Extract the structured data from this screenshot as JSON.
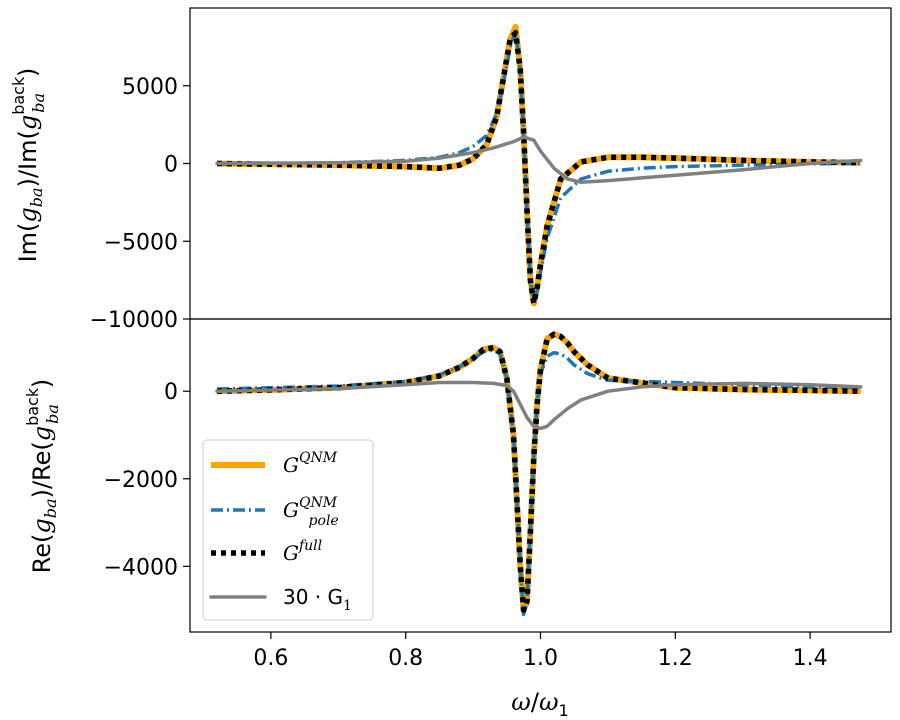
{
  "chart_data": [
    {
      "type": "line",
      "panel": "top",
      "ylabel": "Im(g_ba)/Im(g_ba^back)",
      "ylim": [
        -10000,
        10000
      ],
      "yticks": [
        5000,
        0,
        -5000,
        -10000
      ],
      "ytick_labels": [
        "5000",
        "0",
        "−5000",
        "−10000"
      ],
      "series": [
        {
          "name": "G^QNM",
          "color": "#ffa500",
          "x": [
            0.52,
            0.6,
            0.7,
            0.8,
            0.85,
            0.88,
            0.9,
            0.92,
            0.935,
            0.945,
            0.955,
            0.963,
            0.97,
            0.975,
            0.98,
            0.985,
            0.99,
            0.995,
            1.0,
            1.01,
            1.03,
            1.06,
            1.1,
            1.15,
            1.2,
            1.3,
            1.4,
            1.475
          ],
          "y": [
            0,
            -50,
            -100,
            -200,
            -300,
            -100,
            300,
            1200,
            3000,
            5500,
            8000,
            8800,
            6000,
            2000,
            -3000,
            -7500,
            -9000,
            -8000,
            -6500,
            -4000,
            -1000,
            100,
            400,
            400,
            350,
            200,
            100,
            50
          ]
        },
        {
          "name": "G^QNM_pole",
          "color": "#1f77b4",
          "x": [
            0.52,
            0.6,
            0.7,
            0.8,
            0.85,
            0.88,
            0.9,
            0.92,
            0.935,
            0.945,
            0.955,
            0.963,
            0.97,
            0.975,
            0.98,
            0.985,
            0.99,
            0.995,
            1.0,
            1.01,
            1.03,
            1.06,
            1.1,
            1.15,
            1.2,
            1.3,
            1.4,
            1.475
          ],
          "y": [
            -50,
            0,
            50,
            200,
            400,
            700,
            1100,
            1800,
            3200,
            5200,
            7500,
            8500,
            6000,
            2000,
            -3000,
            -7500,
            -9000,
            -8200,
            -7000,
            -4800,
            -2200,
            -1000,
            -500,
            -300,
            -200,
            -100,
            -20,
            0
          ]
        },
        {
          "name": "G^full",
          "color": "#000000",
          "x": [
            0.52,
            0.6,
            0.7,
            0.8,
            0.85,
            0.88,
            0.9,
            0.92,
            0.935,
            0.945,
            0.955,
            0.963,
            0.97,
            0.975,
            0.98,
            0.985,
            0.99,
            0.995,
            1.0,
            1.01,
            1.03,
            1.06,
            1.1,
            1.15,
            1.2,
            1.3,
            1.4,
            1.475
          ],
          "y": [
            0,
            -50,
            -100,
            -200,
            -300,
            -100,
            300,
            1200,
            3000,
            5500,
            8000,
            8400,
            6000,
            2000,
            -3000,
            -7500,
            -9000,
            -8000,
            -6500,
            -4000,
            -1000,
            100,
            400,
            400,
            350,
            200,
            100,
            50
          ]
        },
        {
          "name": "30·G_1",
          "color": "#808080",
          "x": [
            0.52,
            0.7,
            0.8,
            0.85,
            0.9,
            0.93,
            0.96,
            0.975,
            0.99,
            1.0,
            1.02,
            1.04,
            1.06,
            1.1,
            1.2,
            1.3,
            1.4,
            1.475
          ],
          "y": [
            0,
            50,
            150,
            350,
            700,
            1000,
            1400,
            1700,
            1500,
            800,
            -300,
            -1000,
            -1200,
            -1100,
            -750,
            -400,
            0,
            200
          ]
        }
      ]
    },
    {
      "type": "line",
      "panel": "bottom",
      "xlabel": "ω/ω_1",
      "ylabel": "Re(g_ba)/Re(g_ba^back)",
      "xlim": [
        0.48,
        1.52
      ],
      "ylim": [
        -5500,
        1650
      ],
      "xticks": [
        0.6,
        0.8,
        1.0,
        1.2,
        1.4
      ],
      "xtick_labels": [
        "0.6",
        "0.8",
        "1.0",
        "1.2",
        "1.4"
      ],
      "yticks": [
        0,
        -2000,
        -4000
      ],
      "ytick_labels": [
        "0",
        "−2000",
        "−4000"
      ],
      "legend": {
        "position": "lower-left",
        "entries": [
          {
            "series": 0,
            "base": "G",
            "sup": "QNM",
            "sub": ""
          },
          {
            "series": 1,
            "base": "G",
            "sup": "QNM",
            "sub": "pole"
          },
          {
            "series": 2,
            "base": "G",
            "sup": "full",
            "sub": ""
          },
          {
            "series": 3,
            "base": "30 · G",
            "sup": "",
            "sub": "1"
          }
        ]
      },
      "series": [
        {
          "name": "G^QNM",
          "color": "#ffa500",
          "x": [
            0.52,
            0.6,
            0.7,
            0.8,
            0.85,
            0.88,
            0.9,
            0.915,
            0.93,
            0.94,
            0.95,
            0.96,
            0.965,
            0.97,
            0.975,
            0.98,
            0.985,
            0.99,
            0.995,
            1.0,
            1.01,
            1.02,
            1.03,
            1.04,
            1.05,
            1.07,
            1.1,
            1.2,
            1.3,
            1.4,
            1.475
          ],
          "y": [
            0,
            30,
            80,
            200,
            350,
            550,
            750,
            950,
            1000,
            900,
            300,
            -1000,
            -2500,
            -4000,
            -5000,
            -4800,
            -3200,
            -1500,
            -300,
            500,
            1200,
            1300,
            1250,
            1100,
            900,
            600,
            300,
            80,
            40,
            20,
            0
          ]
        },
        {
          "name": "G^QNM_pole",
          "color": "#1f77b4",
          "x": [
            0.52,
            0.6,
            0.7,
            0.8,
            0.85,
            0.88,
            0.9,
            0.915,
            0.93,
            0.94,
            0.95,
            0.96,
            0.965,
            0.97,
            0.975,
            0.98,
            0.985,
            0.99,
            0.995,
            1.0,
            1.01,
            1.02,
            1.03,
            1.04,
            1.05,
            1.07,
            1.1,
            1.2,
            1.3,
            1.4,
            1.475
          ],
          "y": [
            50,
            80,
            120,
            220,
            370,
            560,
            740,
            900,
            940,
            850,
            300,
            -1000,
            -2500,
            -4000,
            -5100,
            -4800,
            -3200,
            -1500,
            -300,
            400,
            800,
            880,
            850,
            750,
            600,
            400,
            250,
            200,
            150,
            100,
            80
          ]
        },
        {
          "name": "G^full",
          "color": "#000000",
          "x": [
            0.52,
            0.6,
            0.7,
            0.8,
            0.85,
            0.88,
            0.9,
            0.915,
            0.93,
            0.94,
            0.95,
            0.96,
            0.965,
            0.97,
            0.975,
            0.98,
            0.985,
            0.99,
            0.995,
            1.0,
            1.01,
            1.02,
            1.03,
            1.04,
            1.05,
            1.07,
            1.1,
            1.2,
            1.3,
            1.4,
            1.475
          ],
          "y": [
            0,
            30,
            80,
            200,
            350,
            550,
            750,
            950,
            1000,
            900,
            300,
            -1000,
            -2500,
            -4000,
            -5000,
            -4800,
            -3200,
            -1500,
            -300,
            500,
            1200,
            1300,
            1250,
            1100,
            900,
            600,
            300,
            80,
            40,
            20,
            0
          ]
        },
        {
          "name": "30·G_1",
          "color": "#808080",
          "x": [
            0.52,
            0.7,
            0.8,
            0.85,
            0.9,
            0.93,
            0.95,
            0.96,
            0.97,
            0.98,
            0.99,
            1.0,
            1.01,
            1.02,
            1.04,
            1.06,
            1.1,
            1.15,
            1.2,
            1.3,
            1.4,
            1.475
          ],
          "y": [
            0,
            60,
            150,
            200,
            200,
            180,
            130,
            0,
            -300,
            -600,
            -800,
            -850,
            -800,
            -650,
            -400,
            -200,
            0,
            100,
            150,
            180,
            150,
            100
          ]
        }
      ]
    }
  ]
}
